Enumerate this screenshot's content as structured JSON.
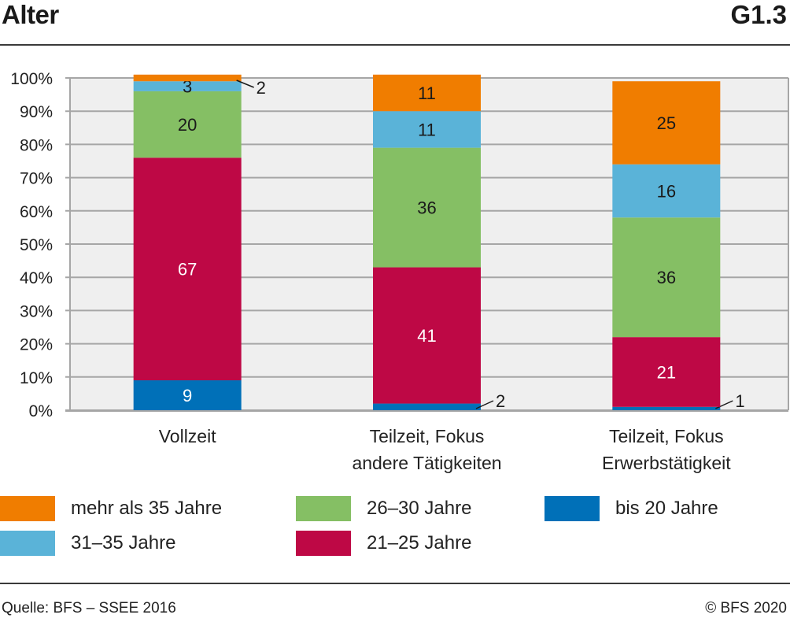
{
  "header": {
    "title": "Alter",
    "chart_id": "G1.3"
  },
  "footer": {
    "source": "Quelle: BFS – SSEE 2016",
    "copyright": "© BFS 2020"
  },
  "chart_data": {
    "type": "bar",
    "stacked": true,
    "title": "Alter",
    "xlabel": "",
    "ylabel": "",
    "ylim": [
      0,
      100
    ],
    "yticks": [
      "0%",
      "10%",
      "20%",
      "30%",
      "40%",
      "50%",
      "60%",
      "70%",
      "80%",
      "90%",
      "100%"
    ],
    "grid": true,
    "legend_position": "bottom",
    "categories": [
      {
        "label_lines": [
          "Vollzeit"
        ]
      },
      {
        "label_lines": [
          "Teilzeit, Fokus",
          "andere Tätigkeiten"
        ]
      },
      {
        "label_lines": [
          "Teilzeit, Fokus",
          "Erwerbstätigkeit"
        ]
      }
    ],
    "series": [
      {
        "name": "bis 20 Jahre",
        "color": "#0070b8",
        "values": [
          9,
          2,
          1
        ],
        "label_colors": [
          "#ffffff",
          "#1a1a1a",
          "#1a1a1a"
        ]
      },
      {
        "name": "21–25 Jahre",
        "color": "#be0845",
        "values": [
          67,
          41,
          21
        ],
        "label_colors": [
          "#ffffff",
          "#ffffff",
          "#ffffff"
        ]
      },
      {
        "name": "26–30 Jahre",
        "color": "#85bf64",
        "values": [
          20,
          36,
          36
        ],
        "label_colors": [
          "#1a1a1a",
          "#1a1a1a",
          "#1a1a1a"
        ]
      },
      {
        "name": "31–35 Jahre",
        "color": "#5ab3d8",
        "values": [
          3,
          11,
          16
        ],
        "label_colors": [
          "#1a1a1a",
          "#1a1a1a",
          "#1a1a1a"
        ]
      },
      {
        "name": "mehr als 35 Jahre",
        "color": "#f07d00",
        "values": [
          2,
          11,
          25
        ],
        "label_colors": [
          "#1a1a1a",
          "#1a1a1a",
          "#1a1a1a"
        ]
      }
    ],
    "legend_order": [
      4,
      2,
      0,
      3,
      1
    ]
  }
}
